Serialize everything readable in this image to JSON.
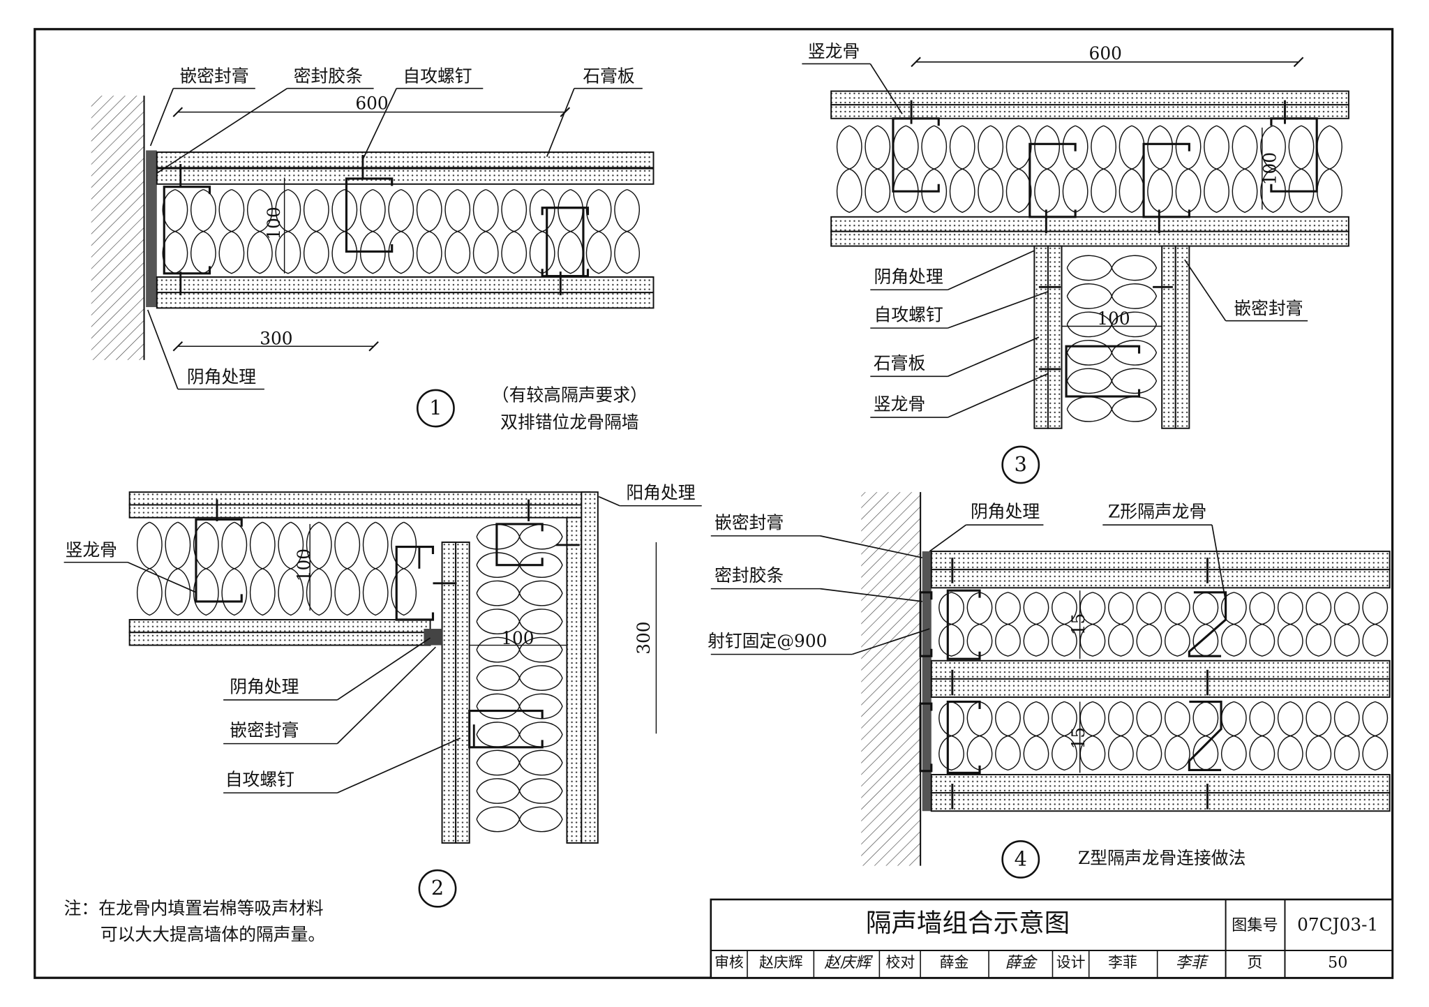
{
  "detail1": {
    "labels": [
      "嵌密封膏",
      "密封胶条",
      "自攻螺钉",
      "石膏板",
      "阴角处理"
    ],
    "dims": [
      600,
      100,
      300
    ],
    "number": "1",
    "caption": [
      "（有较高隔声要求）",
      "双排错位龙骨隔墙"
    ]
  },
  "detail2": {
    "labels": [
      "阳角处理",
      "竖龙骨",
      "阴角处理",
      "嵌密封膏",
      "自攻螺钉"
    ],
    "dims": [
      100,
      100,
      300
    ],
    "number": "2"
  },
  "detail3": {
    "labels": [
      "竖龙骨",
      "阴角处理",
      "自攻螺钉",
      "石膏板",
      "竖龙骨",
      "嵌密封膏"
    ],
    "dims": [
      600,
      100,
      100
    ],
    "number": "3"
  },
  "detail4": {
    "labels": [
      "阴角处理",
      "Z形隔声龙骨",
      "嵌密封膏",
      "密封胶条",
      "射钉固定@900"
    ],
    "dims": [
      15,
      15
    ],
    "number": "4",
    "caption": "Z型隔声龙骨连接做法"
  },
  "note": [
    "注：在龙骨内填置岩棉等吸声材料",
    "可以大大提高墙体的隔声量。"
  ],
  "title_block": {
    "title": "隔声墙组合示意图",
    "atlas_label": "图集号",
    "atlas_no": "07CJ03-1",
    "page_label": "页",
    "page_no": 50,
    "roles": [
      {
        "role": "审核",
        "name": "赵庆辉",
        "signature": "赵庆辉"
      },
      {
        "role": "校对",
        "name": "薛金",
        "signature": "薛金"
      },
      {
        "role": "设计",
        "name": "李菲",
        "signature": "李菲"
      }
    ]
  }
}
